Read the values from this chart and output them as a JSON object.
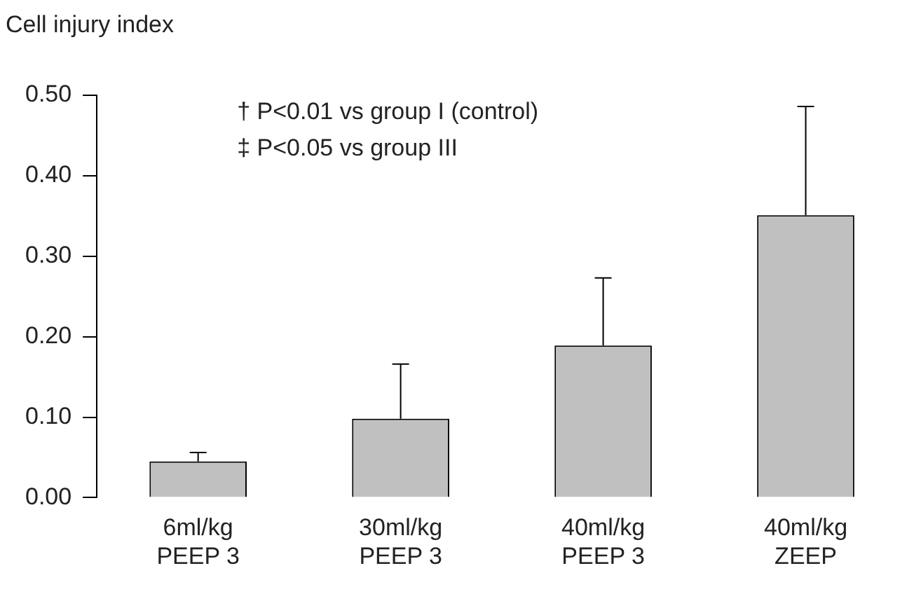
{
  "chart_data": {
    "type": "bar",
    "ylabel": "Cell injury index",
    "categories": [
      "6ml/kg\nPEEP 3",
      "30ml/kg\nPEEP 3",
      "40ml/kg\nPEEP 3",
      "40ml/kg\nZEEP"
    ],
    "values": [
      0.045,
      0.098,
      0.189,
      0.351
    ],
    "errors": [
      [
        0.045,
        0.056
      ],
      [
        0.098,
        0.166
      ],
      [
        0.189,
        0.273
      ],
      [
        0.351,
        0.486
      ]
    ],
    "color": "#c0c0c0",
    "ylim": [
      0,
      0.5
    ],
    "yticks": [
      {
        "value": 0,
        "label": "0.00"
      },
      {
        "value": 0.1,
        "label": "0.10"
      },
      {
        "value": 0.2,
        "label": "0.20"
      },
      {
        "value": 0.3,
        "label": "0.30"
      },
      {
        "value": 0.4,
        "label": "0.40"
      },
      {
        "value": 0.5,
        "label": "0.50"
      }
    ],
    "grid": false,
    "legend": false,
    "annotations": [
      "† P<0.01 vs group I (control)",
      "‡ P<0.05 vs group III"
    ]
  }
}
